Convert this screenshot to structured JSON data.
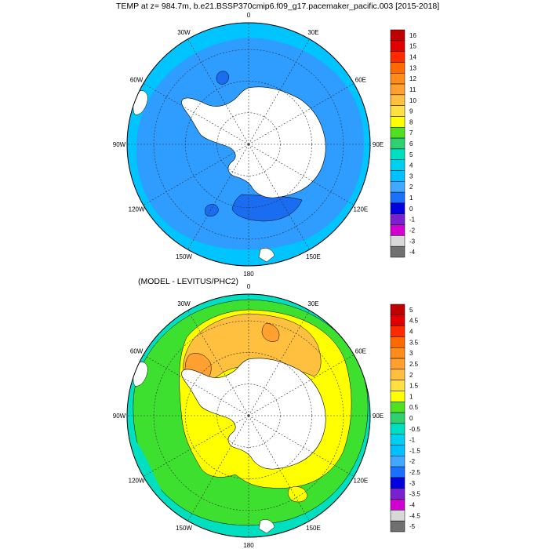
{
  "top_panel": {
    "title": "TEMP at z= 984.7m, b.e21.BSSP370cmip6.f09_g17.pacemaker_pacific.003 [2015-2018]",
    "longitude_labels": [
      "0",
      "30E",
      "60E",
      "90E",
      "120E",
      "150E",
      "180",
      "150W",
      "120W",
      "90W",
      "60W",
      "30W"
    ],
    "colorbar": {
      "labels": [
        "16",
        "15",
        "14",
        "13",
        "12",
        "11",
        "10",
        "9",
        "8",
        "7",
        "6",
        "5",
        "4",
        "3",
        "2",
        "1",
        "0",
        "-1",
        "-2",
        "-3",
        "-4"
      ],
      "colors": [
        "#bf0000",
        "#e00000",
        "#ff2a00",
        "#ff6a00",
        "#ff8c1a",
        "#ffa030",
        "#ffc040",
        "#ffe040",
        "#ffff00",
        "#50e020",
        "#30d070",
        "#00e0c0",
        "#00d0f0",
        "#00c0ff",
        "#40a8ff",
        "#1a70ff",
        "#0000e0",
        "#7a20d0",
        "#d000d0",
        "#d8d8d8",
        "#707070"
      ]
    }
  },
  "bottom_panel": {
    "title": "(MODEL - LEVITUS/PHC2)",
    "longitude_labels": [
      "0",
      "30E",
      "60E",
      "90E",
      "120E",
      "150E",
      "180",
      "150W",
      "120W",
      "90W",
      "60W",
      "30W"
    ],
    "colorbar": {
      "labels": [
        "5",
        "4.5",
        "4",
        "3.5",
        "3",
        "2.5",
        "2",
        "1.5",
        "1",
        "0.5",
        "0",
        "-0.5",
        "-1",
        "-1.5",
        "-2",
        "-2.5",
        "-3",
        "-3.5",
        "-4",
        "-4.5",
        "-5"
      ],
      "colors": [
        "#bf0000",
        "#e00000",
        "#ff2a00",
        "#ff6a00",
        "#ff8c1a",
        "#ffa030",
        "#ffc040",
        "#ffe040",
        "#ffff00",
        "#50e020",
        "#30d070",
        "#00e0c0",
        "#00d0f0",
        "#00c0ff",
        "#40a8ff",
        "#1a70ff",
        "#0000e0",
        "#7a20d0",
        "#d000d0",
        "#d8d8d8",
        "#707070"
      ]
    }
  },
  "colors": {
    "top_ocean": "#00c4ff",
    "top_ocean_inner": "#2f9cff",
    "top_cold_patch": "#1a6cf0",
    "bottom_outer": "#00e0c0",
    "bottom_green": "#3ee030",
    "bottom_yellow": "#ffff00",
    "bottom_orange": "#ffc040",
    "bottom_dark_orange": "#ffa030",
    "land": "#ffffff"
  }
}
